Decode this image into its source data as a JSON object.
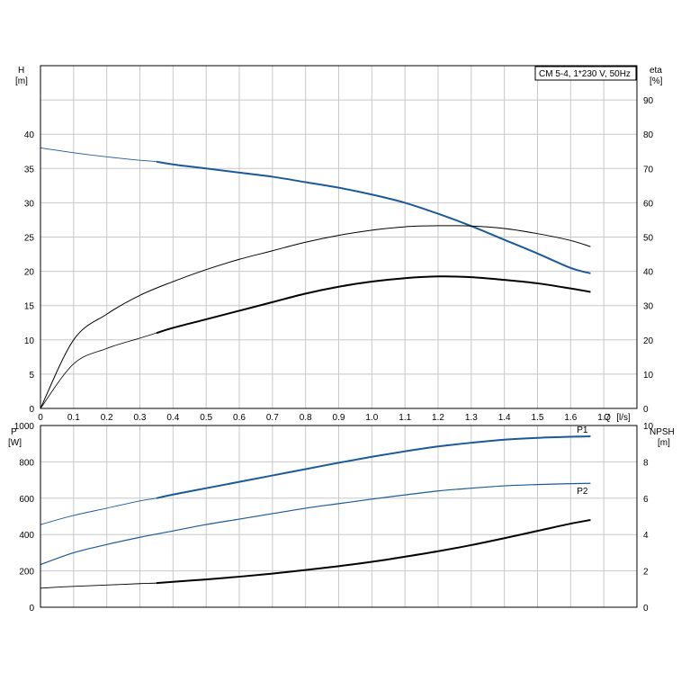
{
  "chart_data": [
    {
      "type": "line",
      "title": "CM 5-4, 1*230 V, 50Hz",
      "xlabel": "Q [l/s]",
      "x_axis_label_parts": [
        "Q",
        "[l/s]"
      ],
      "xlim": [
        0,
        1.8
      ],
      "x_ticks": [
        "0",
        "0.1",
        "0.2",
        "0.3",
        "0.4",
        "0.5",
        "0.6",
        "0.7",
        "0.8",
        "0.9",
        "1.0",
        "1.1",
        "1.2",
        "1.3",
        "1.4",
        "1.5",
        "1.6",
        "1.7"
      ],
      "y_left": {
        "label": "H",
        "unit": "[m]",
        "lim": [
          0,
          50
        ],
        "ticks": [
          "0",
          "5",
          "10",
          "15",
          "20",
          "25",
          "30",
          "35",
          "40"
        ]
      },
      "y_right": {
        "label": "eta",
        "unit": "[%]",
        "lim": [
          0,
          100
        ],
        "ticks": [
          "0",
          "10",
          "20",
          "30",
          "40",
          "50",
          "60",
          "70",
          "80",
          "90"
        ]
      },
      "grid": true,
      "series": [
        {
          "axis": "left",
          "color": "#1a5a9a",
          "x": [
            0,
            0.1,
            0.2,
            0.3,
            0.35,
            0.4,
            0.5,
            0.6,
            0.7,
            0.8,
            0.9,
            1.0,
            1.1,
            1.2,
            1.3,
            1.4,
            1.5,
            1.6,
            1.66
          ],
          "y": [
            38.0,
            37.3,
            36.7,
            36.2,
            36.0,
            35.6,
            35.0,
            34.4,
            33.8,
            33.0,
            32.2,
            31.2,
            30.0,
            28.4,
            26.6,
            24.6,
            22.6,
            20.5,
            19.7
          ]
        },
        {
          "axis": "right",
          "color": "#000000",
          "x": [
            0,
            0.1,
            0.2,
            0.3,
            0.4,
            0.5,
            0.6,
            0.7,
            0.8,
            0.9,
            1.0,
            1.1,
            1.2,
            1.3,
            1.4,
            1.5,
            1.6,
            1.66
          ],
          "y": [
            0,
            20,
            27.5,
            33.0,
            37.0,
            40.5,
            43.5,
            46.0,
            48.5,
            50.5,
            52.0,
            53.0,
            53.3,
            53.2,
            52.5,
            51.0,
            49.0,
            47.2
          ]
        },
        {
          "axis": "right",
          "color": "#000000",
          "x": [
            0,
            0.1,
            0.2,
            0.3,
            0.35,
            0.4,
            0.5,
            0.6,
            0.7,
            0.8,
            0.9,
            1.0,
            1.1,
            1.2,
            1.3,
            1.4,
            1.5,
            1.6,
            1.66
          ],
          "y": [
            0,
            13.0,
            17.5,
            20.5,
            22.0,
            23.5,
            26.0,
            28.5,
            31.0,
            33.5,
            35.5,
            37.0,
            38.0,
            38.5,
            38.3,
            37.5,
            36.5,
            35.0,
            34.0
          ]
        }
      ]
    },
    {
      "type": "line",
      "xlim": [
        0,
        1.8
      ],
      "y_left": {
        "label": "P",
        "unit": "[W]",
        "lim": [
          0,
          1000
        ],
        "ticks": [
          "0",
          "200",
          "400",
          "600",
          "800",
          "1000"
        ]
      },
      "y_right": {
        "label": "NPSH",
        "unit": "[m]",
        "lim": [
          0,
          10
        ],
        "ticks": [
          "0",
          "2",
          "4",
          "6",
          "8",
          "10"
        ]
      },
      "grid": true,
      "series": [
        {
          "name": "P1",
          "axis": "left",
          "color": "#1a5a9a",
          "x": [
            0,
            0.1,
            0.2,
            0.3,
            0.35,
            0.4,
            0.5,
            0.6,
            0.7,
            0.8,
            0.9,
            1.0,
            1.1,
            1.2,
            1.3,
            1.4,
            1.5,
            1.6,
            1.66
          ],
          "y": [
            455,
            505,
            545,
            585,
            600,
            620,
            655,
            690,
            725,
            760,
            795,
            828,
            858,
            885,
            905,
            922,
            932,
            938,
            940
          ]
        },
        {
          "name": "P2",
          "axis": "left",
          "color": "#1a5a9a",
          "x": [
            0,
            0.1,
            0.2,
            0.3,
            0.4,
            0.5,
            0.6,
            0.7,
            0.8,
            0.9,
            1.0,
            1.1,
            1.2,
            1.3,
            1.4,
            1.5,
            1.6,
            1.66
          ],
          "y": [
            235,
            300,
            345,
            385,
            420,
            455,
            485,
            515,
            545,
            570,
            595,
            618,
            640,
            655,
            668,
            675,
            680,
            682
          ]
        },
        {
          "axis": "right",
          "color": "#000000",
          "x": [
            0,
            0.1,
            0.2,
            0.3,
            0.35,
            0.4,
            0.5,
            0.6,
            0.7,
            0.8,
            0.9,
            1.0,
            1.1,
            1.2,
            1.3,
            1.4,
            1.5,
            1.6,
            1.66
          ],
          "y": [
            1.05,
            1.15,
            1.22,
            1.3,
            1.33,
            1.4,
            1.53,
            1.68,
            1.85,
            2.05,
            2.26,
            2.5,
            2.78,
            3.08,
            3.42,
            3.8,
            4.2,
            4.6,
            4.8
          ]
        }
      ]
    }
  ]
}
